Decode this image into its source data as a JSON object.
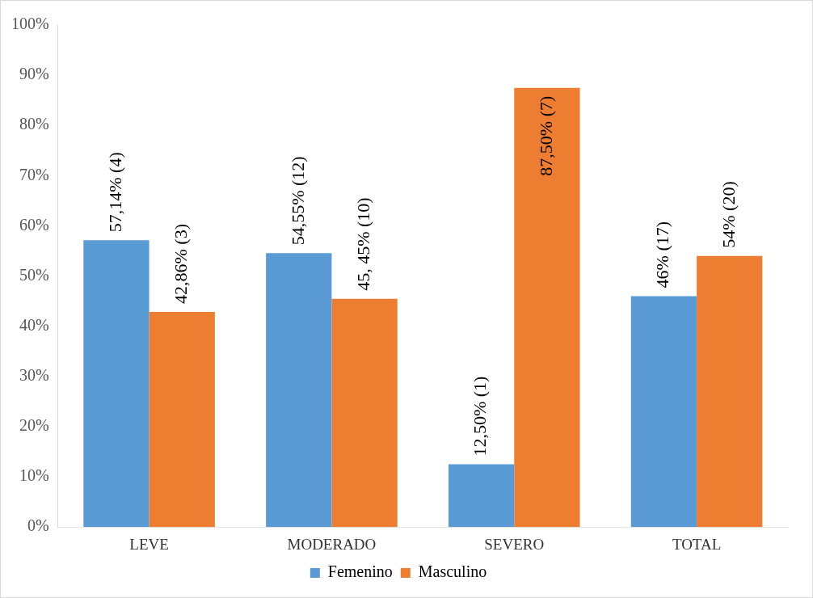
{
  "chart_data": {
    "type": "bar",
    "categories": [
      "LEVE",
      "MODERADO",
      "SEVERO",
      "TOTAL"
    ],
    "series": [
      {
        "name": "Femenino",
        "color": "#5b9bd5",
        "values": [
          57.14,
          54.55,
          12.5,
          46
        ],
        "value_labels": [
          "57,14% (4)",
          "54,55% (12)",
          "12,50% (1)",
          "46% (17)"
        ]
      },
      {
        "name": "Masculino",
        "color": "#ed7d31",
        "values": [
          42.86,
          45.45,
          87.5,
          54
        ],
        "value_labels": [
          "42,86% (3)",
          "45, 45% (10)",
          "87,50% (7)",
          "54% (20)"
        ]
      }
    ],
    "ylim": [
      0,
      100
    ],
    "yticks": [
      {
        "value": 0,
        "label": "0%"
      },
      {
        "value": 10,
        "label": "10%"
      },
      {
        "value": 20,
        "label": "20%"
      },
      {
        "value": 30,
        "label": "30%"
      },
      {
        "value": 40,
        "label": "40%"
      },
      {
        "value": 50,
        "label": "50%"
      },
      {
        "value": 60,
        "label": "60%"
      },
      {
        "value": 70,
        "label": "70%"
      },
      {
        "value": 80,
        "label": "80%"
      },
      {
        "value": 90,
        "label": "90%"
      },
      {
        "value": 100,
        "label": "100%"
      }
    ],
    "grid": false,
    "legend": "bottom"
  }
}
